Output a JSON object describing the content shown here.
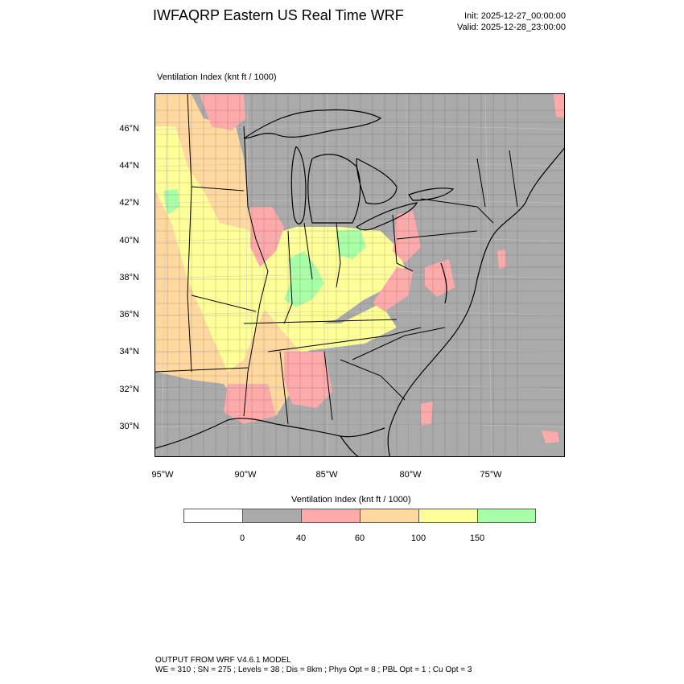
{
  "header": {
    "title": "IWFAQRP Eastern US Real Time WRF",
    "init": "Init: 2025-12-27_00:00:00",
    "valid": "Valid: 2025-12-28_23:00:00"
  },
  "map": {
    "field_title": "Ventilation Index   (knt ft / 1000)",
    "lat_labels": [
      "46°N",
      "44°N",
      "42°N",
      "40°N",
      "38°N",
      "36°N",
      "34°N",
      "32°N",
      "30°N"
    ],
    "lon_labels": [
      "95°W",
      "90°W",
      "85°W",
      "80°W",
      "75°W"
    ]
  },
  "colorbar": {
    "title": "Ventilation Index  (knt ft / 1000)",
    "colors": [
      "#ffffff",
      "#aaaaaa",
      "#ffaaaa",
      "#ffd8a0",
      "#ffff99",
      "#a8ffa8"
    ],
    "labels": [
      "0",
      "40",
      "60",
      "100",
      "150"
    ]
  },
  "footer": {
    "line1": "OUTPUT FROM WRF V4.6.1 MODEL",
    "line2": "WE = 310 ; SN = 275 ; Levels = 38 ; Dis = 8km ; Phys Opt = 8 ; PBL Opt = 1 ; Cu Opt = 3"
  }
}
